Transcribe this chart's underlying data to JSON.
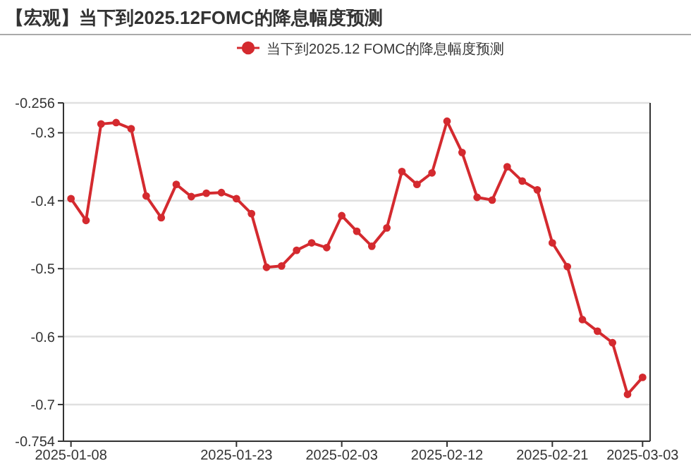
{
  "chart_data": {
    "type": "line",
    "title": "【宏观】当下到2025.12FOMC的降息幅度预测",
    "categories": [
      "2025-01-08",
      null,
      null,
      null,
      null,
      null,
      null,
      null,
      null,
      null,
      null,
      "2025-01-23",
      null,
      null,
      null,
      null,
      null,
      null,
      "2025-02-03",
      null,
      null,
      null,
      null,
      null,
      null,
      "2025-02-12",
      null,
      null,
      null,
      null,
      null,
      null,
      "2025-02-21",
      null,
      null,
      null,
      null,
      null,
      "2025-03-03"
    ],
    "series": [
      {
        "name": "当下到2025.12 FOMC的降息幅度预测",
        "color": "#d42a2f",
        "values": [
          -0.397,
          -0.429,
          -0.287,
          -0.285,
          -0.294,
          -0.393,
          -0.425,
          -0.376,
          -0.394,
          -0.389,
          -0.388,
          -0.397,
          -0.419,
          -0.498,
          -0.496,
          -0.473,
          -0.462,
          -0.469,
          -0.422,
          -0.445,
          -0.467,
          -0.44,
          -0.357,
          -0.376,
          -0.359,
          -0.283,
          -0.329,
          -0.395,
          -0.399,
          -0.35,
          -0.371,
          -0.384,
          -0.462,
          -0.497,
          -0.575,
          -0.592,
          -0.609,
          -0.685,
          -0.66
        ]
      }
    ],
    "ylim": [
      -0.754,
      -0.256
    ],
    "yticks": [
      -0.256,
      -0.3,
      -0.4,
      -0.5,
      -0.6,
      -0.7,
      -0.754
    ],
    "grid": "y",
    "legend": "top",
    "marker": "circle"
  }
}
